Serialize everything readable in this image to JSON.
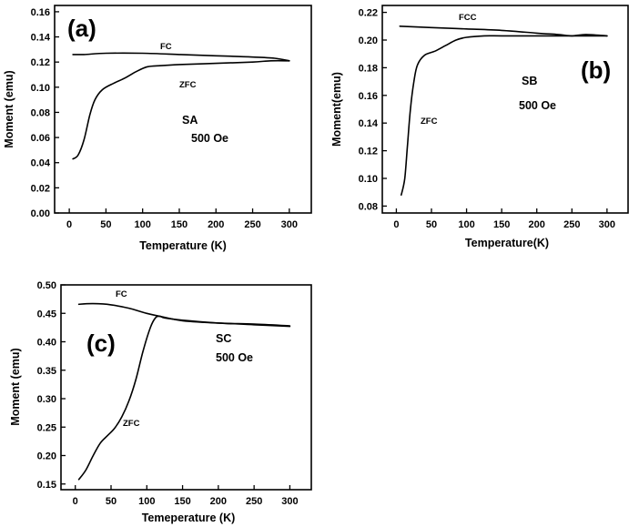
{
  "chart_data": [
    {
      "type": "line",
      "panel_label": "(a)",
      "annotation": [
        "SA",
        "500 Oe"
      ],
      "xlabel": "Temperature (K)",
      "ylabel": "Moment (emu)",
      "xlim": [
        -20,
        330
      ],
      "ylim": [
        0.0,
        0.165
      ],
      "xticks": [
        0,
        50,
        100,
        150,
        200,
        250,
        300
      ],
      "yticks": [
        0.0,
        0.02,
        0.04,
        0.06,
        0.08,
        0.1,
        0.12,
        0.14,
        0.16
      ],
      "ytick_decimals": 2,
      "grid": false,
      "series": [
        {
          "name": "FC",
          "x": [
            5,
            20,
            50,
            100,
            150,
            200,
            250,
            280,
            300
          ],
          "y": [
            0.126,
            0.126,
            0.127,
            0.127,
            0.126,
            0.125,
            0.124,
            0.123,
            0.121
          ]
        },
        {
          "name": "ZFC",
          "x": [
            5,
            12,
            20,
            28,
            35,
            45,
            60,
            75,
            90,
            105,
            120,
            150,
            200,
            250,
            275,
            300
          ],
          "y": [
            0.043,
            0.046,
            0.058,
            0.078,
            0.09,
            0.098,
            0.103,
            0.107,
            0.112,
            0.116,
            0.117,
            0.118,
            0.119,
            0.12,
            0.121,
            0.121
          ]
        }
      ]
    },
    {
      "type": "line",
      "panel_label": "(b)",
      "annotation": [
        "SB",
        "500 Oe"
      ],
      "xlabel": "Temperature(K)",
      "ylabel": "Moment(emu)",
      "xlim": [
        -20,
        330
      ],
      "ylim": [
        0.075,
        0.225
      ],
      "xticks": [
        0,
        50,
        100,
        150,
        200,
        250,
        300
      ],
      "yticks": [
        0.08,
        0.1,
        0.12,
        0.14,
        0.16,
        0.18,
        0.2,
        0.22
      ],
      "ytick_decimals": 2,
      "grid": false,
      "series": [
        {
          "name": "FCC",
          "x": [
            5,
            50,
            100,
            150,
            200,
            230,
            250,
            270,
            300
          ],
          "y": [
            0.21,
            0.209,
            0.208,
            0.207,
            0.205,
            0.204,
            0.203,
            0.204,
            0.203
          ]
        },
        {
          "name": "ZFC",
          "x": [
            7,
            12,
            16,
            20,
            25,
            30,
            40,
            55,
            70,
            85,
            100,
            125,
            150,
            200,
            250,
            300
          ],
          "y": [
            0.088,
            0.1,
            0.125,
            0.15,
            0.17,
            0.182,
            0.189,
            0.192,
            0.196,
            0.2,
            0.202,
            0.203,
            0.203,
            0.203,
            0.203,
            0.203
          ]
        }
      ]
    },
    {
      "type": "line",
      "panel_label": "(c)",
      "annotation": [
        "SC",
        "500 Oe"
      ],
      "xlabel": "Temeperature (K)",
      "ylabel": "Moment (emu)",
      "xlim": [
        -20,
        330
      ],
      "ylim": [
        0.14,
        0.5
      ],
      "xticks": [
        0,
        50,
        100,
        150,
        200,
        250,
        300
      ],
      "yticks": [
        0.15,
        0.2,
        0.25,
        0.3,
        0.35,
        0.4,
        0.45,
        0.5
      ],
      "ytick_decimals": 2,
      "grid": false,
      "series": [
        {
          "name": "FC",
          "x": [
            5,
            25,
            50,
            75,
            100,
            125,
            150,
            200,
            250,
            300
          ],
          "y": [
            0.466,
            0.467,
            0.465,
            0.459,
            0.45,
            0.443,
            0.437,
            0.433,
            0.431,
            0.428
          ]
        },
        {
          "name": "ZFC",
          "x": [
            5,
            15,
            25,
            35,
            45,
            55,
            65,
            75,
            85,
            95,
            105,
            112,
            118,
            125,
            150,
            200,
            250,
            300
          ],
          "y": [
            0.158,
            0.175,
            0.2,
            0.222,
            0.235,
            0.248,
            0.268,
            0.296,
            0.335,
            0.385,
            0.425,
            0.442,
            0.445,
            0.442,
            0.438,
            0.433,
            0.43,
            0.427
          ]
        }
      ]
    }
  ]
}
